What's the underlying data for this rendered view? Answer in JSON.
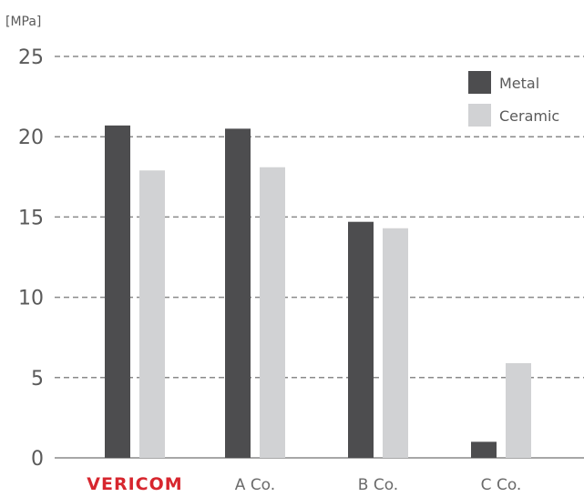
{
  "chart_data": {
    "type": "bar",
    "ylabel": "[MPa]",
    "ylim": [
      0,
      25
    ],
    "yticks": [
      0,
      5,
      10,
      15,
      20,
      25
    ],
    "categories": [
      "VERICOM",
      "A Co.",
      "B Co.",
      "C Co."
    ],
    "brand_category": "VERICOM",
    "series": [
      {
        "name": "Metal",
        "color": "#4d4d4f",
        "values": [
          20.7,
          20.5,
          14.7,
          1.0
        ]
      },
      {
        "name": "Ceramic",
        "color": "#d1d2d4",
        "values": [
          17.9,
          18.1,
          14.3,
          5.9
        ]
      }
    ],
    "grid": true,
    "legend": "top-right"
  }
}
